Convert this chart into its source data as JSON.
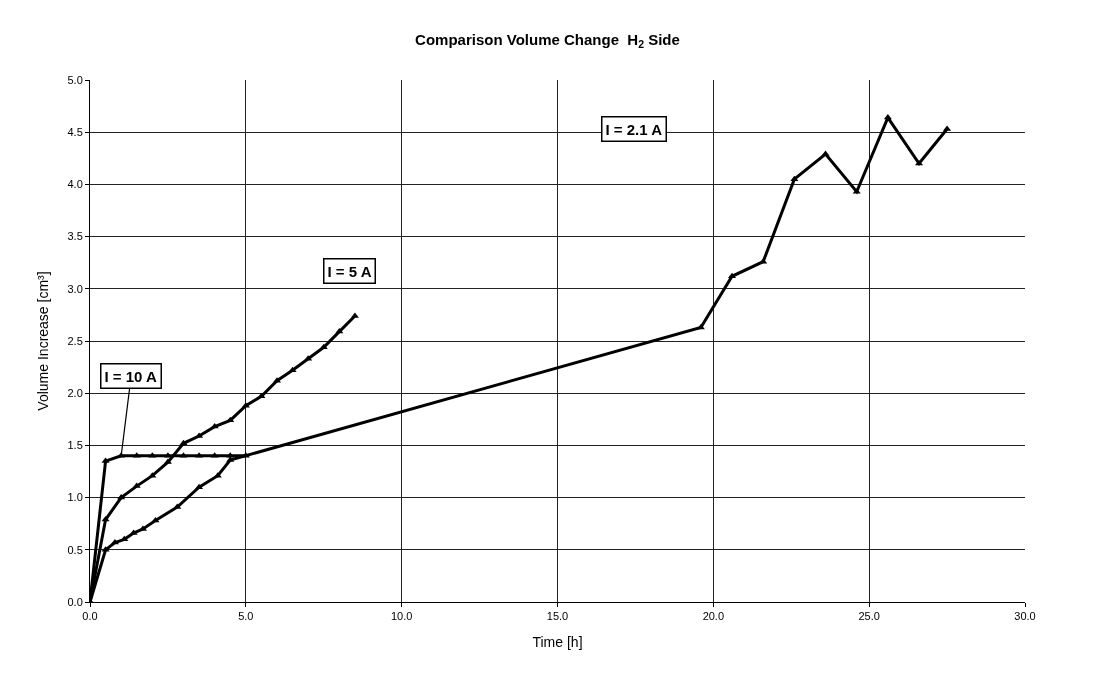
{
  "chart_data": {
    "type": "line",
    "title": "Comparison Volume Change  H$_{2}$ Side",
    "xlabel": "Time [h]",
    "ylabel": "Volume Increase [cm³]",
    "series": [
      {
        "name": "I = 10 A",
        "color": "#000000",
        "x": [
          0,
          0.5,
          1.0,
          1.5,
          2.0,
          2.5,
          3.0,
          3.5,
          4.0,
          4.5,
          5.0
        ],
        "values": [
          0,
          1.35,
          1.4,
          1.4,
          1.4,
          1.4,
          1.4,
          1.4,
          1.4,
          1.4,
          1.4
        ]
      },
      {
        "name": "I = 5 A",
        "color": "#000000",
        "x": [
          0,
          0.5,
          1.0,
          1.5,
          2.0,
          2.5,
          3.0,
          3.5,
          4.0,
          4.5,
          5.0,
          5.5,
          6.0,
          6.5,
          7.0,
          7.5,
          8.0,
          8.5
        ],
        "values": [
          0,
          0.79,
          1.0,
          1.11,
          1.21,
          1.34,
          1.52,
          1.59,
          1.68,
          1.74,
          1.88,
          1.97,
          2.12,
          2.22,
          2.33,
          2.44,
          2.59,
          2.74
        ]
      },
      {
        "name": "I = 2.1 A",
        "color": "#000000",
        "x": [
          0,
          0.5,
          0.8,
          1.1,
          1.4,
          1.7,
          2.1,
          2.8,
          3.5,
          4.1,
          4.5,
          19.6,
          20.6,
          21.6,
          22.6,
          23.6,
          24.6,
          25.6,
          26.6,
          27.5
        ],
        "values": [
          0,
          0.5,
          0.57,
          0.6,
          0.66,
          0.7,
          0.78,
          0.91,
          1.1,
          1.21,
          1.36,
          2.63,
          3.12,
          3.26,
          4.05,
          4.29,
          3.93,
          4.64,
          4.2,
          4.53
        ]
      }
    ],
    "xlim": [
      0,
      30
    ],
    "ylim": [
      0,
      5
    ],
    "xticks": [
      {
        "value": 0,
        "label": "0.0"
      },
      {
        "value": 5,
        "label": "5.0"
      },
      {
        "value": 10,
        "label": "10.0"
      },
      {
        "value": 15,
        "label": "15.0"
      },
      {
        "value": 20,
        "label": "20.0"
      },
      {
        "value": 25,
        "label": "25.0"
      },
      {
        "value": 30,
        "label": "30.0"
      }
    ],
    "yticks": [
      {
        "value": 0,
        "label": "0.0"
      },
      {
        "value": 0.5,
        "label": "0.5"
      },
      {
        "value": 1,
        "label": "1.0"
      },
      {
        "value": 1.5,
        "label": "1.5"
      },
      {
        "value": 2,
        "label": "2.0"
      },
      {
        "value": 2.5,
        "label": "2.5"
      },
      {
        "value": 3,
        "label": "3.0"
      },
      {
        "value": 3.5,
        "label": "3.5"
      },
      {
        "value": 4,
        "label": "4.0"
      },
      {
        "value": 4.5,
        "label": "4.5"
      },
      {
        "value": 5,
        "label": "5.0"
      }
    ],
    "grid": true,
    "legend": false,
    "marker": "triangle",
    "line_style": "solid"
  }
}
